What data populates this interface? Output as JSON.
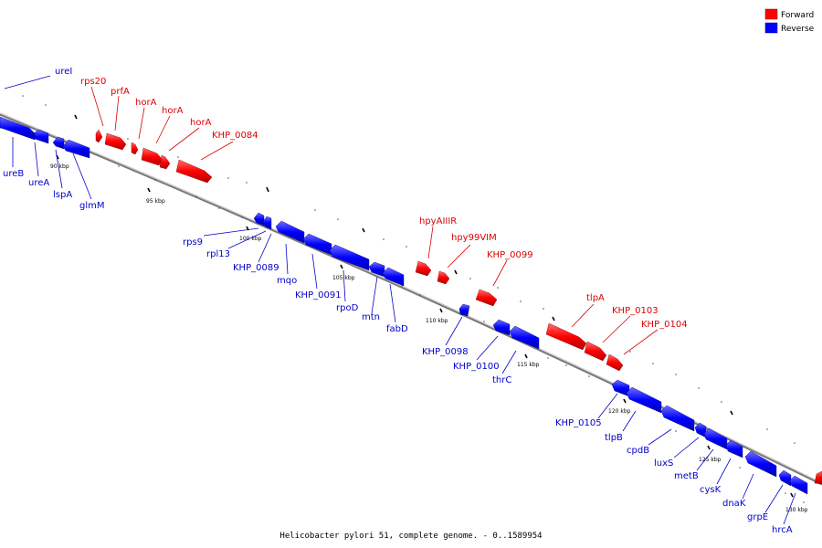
{
  "caption": "Helicobacter pylori 51, complete genome. - 0..1589954",
  "legend": [
    {
      "label": "Forward",
      "color": "#ff0000"
    },
    {
      "label": "Reverse",
      "color": "#0000ff"
    }
  ],
  "colors": {
    "forward": "#ff0000",
    "reverse": "#0000ff",
    "backbone": "#888888"
  },
  "kbp_marks": [
    "90 kbp",
    "95 kbp",
    "100 kbp",
    "105 kbp",
    "110 kbp",
    "115 kbp",
    "120 kbp",
    "125 kbp",
    "130 kbp"
  ],
  "genes_forward": [
    {
      "name": "rps20"
    },
    {
      "name": "prfA"
    },
    {
      "name": "horA"
    },
    {
      "name": "horA"
    },
    {
      "name": "horA"
    },
    {
      "name": "KHP_0084"
    },
    {
      "name": "hpyAIIIR"
    },
    {
      "name": "hpy99VIM"
    },
    {
      "name": "KHP_0099"
    },
    {
      "name": "tlpA"
    },
    {
      "name": "KHP_0103"
    },
    {
      "name": "KHP_0104"
    }
  ],
  "genes_reverse": [
    {
      "name": "ureI"
    },
    {
      "name": "ureB"
    },
    {
      "name": "ureA"
    },
    {
      "name": "lspA"
    },
    {
      "name": "glmM"
    },
    {
      "name": "rps9"
    },
    {
      "name": "rpl13"
    },
    {
      "name": "KHP_0089"
    },
    {
      "name": "mqo"
    },
    {
      "name": "KHP_0091"
    },
    {
      "name": "rpoD"
    },
    {
      "name": "mtn"
    },
    {
      "name": "fabD"
    },
    {
      "name": "KHP_0098"
    },
    {
      "name": "KHP_0100"
    },
    {
      "name": "thrC"
    },
    {
      "name": "KHP_0105"
    },
    {
      "name": "tlpB"
    },
    {
      "name": "cpdB"
    },
    {
      "name": "luxS"
    },
    {
      "name": "metB"
    },
    {
      "name": "cysK"
    },
    {
      "name": "dnaK"
    },
    {
      "name": "grpE"
    },
    {
      "name": "hrcA"
    }
  ]
}
